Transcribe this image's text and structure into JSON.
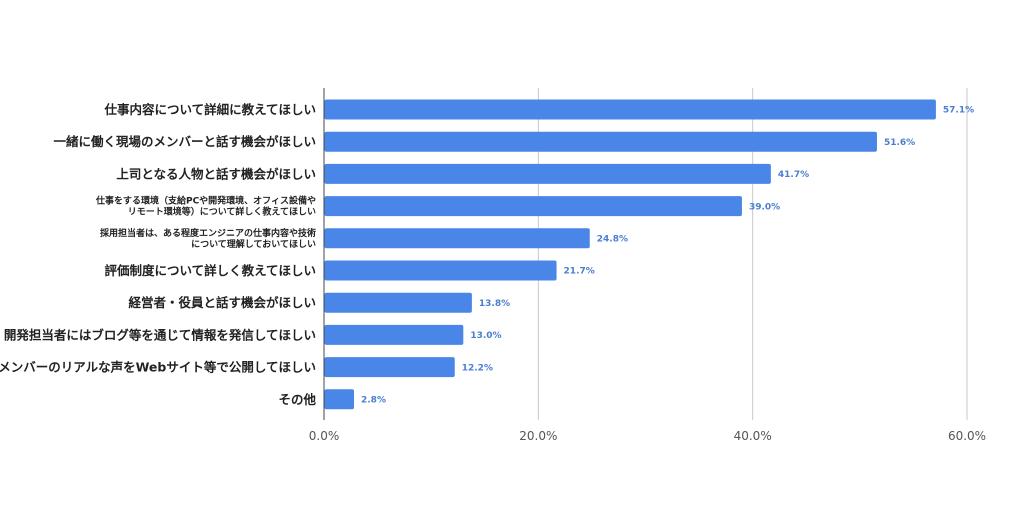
{
  "chart_data": {
    "type": "bar",
    "orientation": "horizontal",
    "title": "",
    "xlabel": "",
    "ylabel": "",
    "xlim": [
      0,
      60
    ],
    "grid": true,
    "bar_color": "#4a86e8",
    "label_color": "#4a7fd0",
    "ticks": [
      "0.0%",
      "20.0%",
      "40.0%",
      "60.0%"
    ],
    "tick_values": [
      0,
      20,
      40,
      60
    ],
    "categories": [
      [
        "仕事内容について詳細に教えてほしい"
      ],
      [
        "一緒に働く現場のメンバーと話す機会がほしい"
      ],
      [
        "上司となる人物と話す機会がほしい"
      ],
      [
        "仕事をする環境（支給PCや開発環境、オフィス設備や",
        "リモート環境等）について詳しく教えてほしい"
      ],
      [
        "採用担当者は、ある程度エンジニアの仕事内容や技術",
        "について理解しておいてほしい"
      ],
      [
        "評価制度について詳しく教えてほしい"
      ],
      [
        "経営者・役員と話す機会がほしい"
      ],
      [
        "開発担当者にはブログ等を通じて情報を発信してほしい"
      ],
      [
        "現場のメンバーのリアルな声をWebサイト等で公開してほしい"
      ],
      [
        "その他"
      ]
    ],
    "values": [
      57.1,
      51.6,
      41.7,
      39.0,
      24.8,
      21.7,
      13.8,
      13.0,
      12.2,
      2.8
    ],
    "value_labels": [
      "57.1%",
      "51.6%",
      "41.7%",
      "39.0%",
      "24.8%",
      "21.7%",
      "13.8%",
      "13.0%",
      "12.2%",
      "2.8%"
    ]
  }
}
